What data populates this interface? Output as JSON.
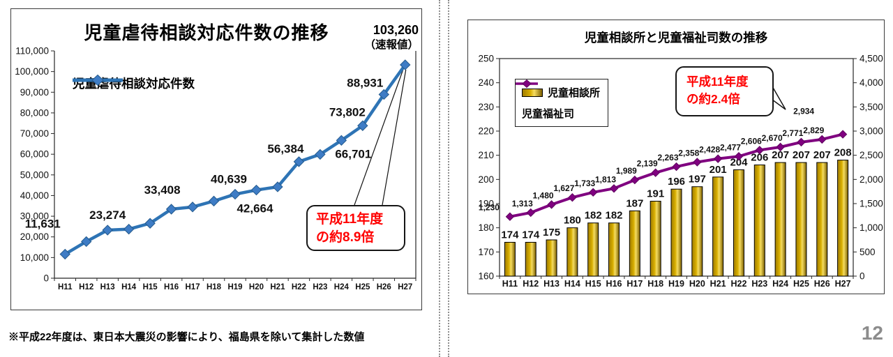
{
  "page": {
    "note": "※平成22年度は、東日本大震災の影響により、福島県を除いて集計した数値",
    "page_number": "12"
  },
  "chart_data": [
    {
      "id": "abuse",
      "type": "line",
      "title": "児童虐待相談対応件数の推移",
      "peak_label": "103,260",
      "peak_sublabel": "（速報値）",
      "annotation_line1": "平成11年度",
      "annotation_line2": "の約8.9倍",
      "legend_position": "inside-top-left",
      "grid": false,
      "categories": [
        "H11",
        "H12",
        "H13",
        "H14",
        "H15",
        "H16",
        "H17",
        "H18",
        "H19",
        "H20",
        "H21",
        "H22",
        "H23",
        "H24",
        "H25",
        "H26",
        "H27"
      ],
      "series": [
        {
          "name": "児童虐待相談対応件数",
          "color": "#2E74B5",
          "marker_color": "#3E7CC5",
          "values": [
            11631,
            17725,
            23274,
            23738,
            26569,
            33408,
            34472,
            37323,
            40639,
            42664,
            44211,
            56384,
            59919,
            66701,
            73802,
            88931,
            103260
          ]
        }
      ],
      "point_labels": [
        "11,631",
        null,
        "23,274",
        null,
        null,
        "33,408",
        null,
        null,
        "40,639",
        "42,664",
        null,
        "56,384",
        null,
        "66,701",
        "73,802",
        "88,931",
        null
      ],
      "ylim": [
        0,
        110000
      ],
      "ytick_labels": [
        "0",
        "10,000",
        "20,000",
        "30,000",
        "40,000",
        "50,000",
        "60,000",
        "70,000",
        "80,000",
        "90,000",
        "100,000",
        "110,000"
      ]
    },
    {
      "id": "staff",
      "type": "bar",
      "subtype": "bar-line-combo",
      "title": "児童相談所と児童福祉司数の推移",
      "annotation_line1": "平成11年度",
      "annotation_line2": "の約2.4倍",
      "grid": false,
      "legend_position": "inside-top-left",
      "categories": [
        "H11",
        "H12",
        "H13",
        "H14",
        "H15",
        "H16",
        "H17",
        "H18",
        "H19",
        "H20",
        "H21",
        "H22",
        "H23",
        "H24",
        "H25",
        "H26",
        "H27"
      ],
      "series": [
        {
          "name": "児童相談所",
          "chart": "bar",
          "axis": "left",
          "color": "#C79A00",
          "values": [
            174,
            174,
            175,
            180,
            182,
            182,
            187,
            191,
            196,
            197,
            201,
            204,
            206,
            207,
            207,
            207,
            208
          ]
        },
        {
          "name": "児童福祉司",
          "chart": "line",
          "axis": "right",
          "color": "#800080",
          "values": [
            1230,
            1313,
            1480,
            1627,
            1733,
            1813,
            1989,
            2139,
            2263,
            2358,
            2428,
            2477,
            2606,
            2670,
            2771,
            2829,
            2934
          ]
        }
      ],
      "left_ylim": [
        160,
        250
      ],
      "left_ytick_labels": [
        "160",
        "170",
        "180",
        "190",
        "200",
        "210",
        "220",
        "230",
        "240",
        "250"
      ],
      "right_ylim": [
        0,
        4500
      ],
      "right_ytick_labels": [
        "0",
        "500",
        "1,000",
        "1,500",
        "2,000",
        "2,500",
        "3,000",
        "3,500",
        "4,000",
        "4,500"
      ]
    }
  ]
}
